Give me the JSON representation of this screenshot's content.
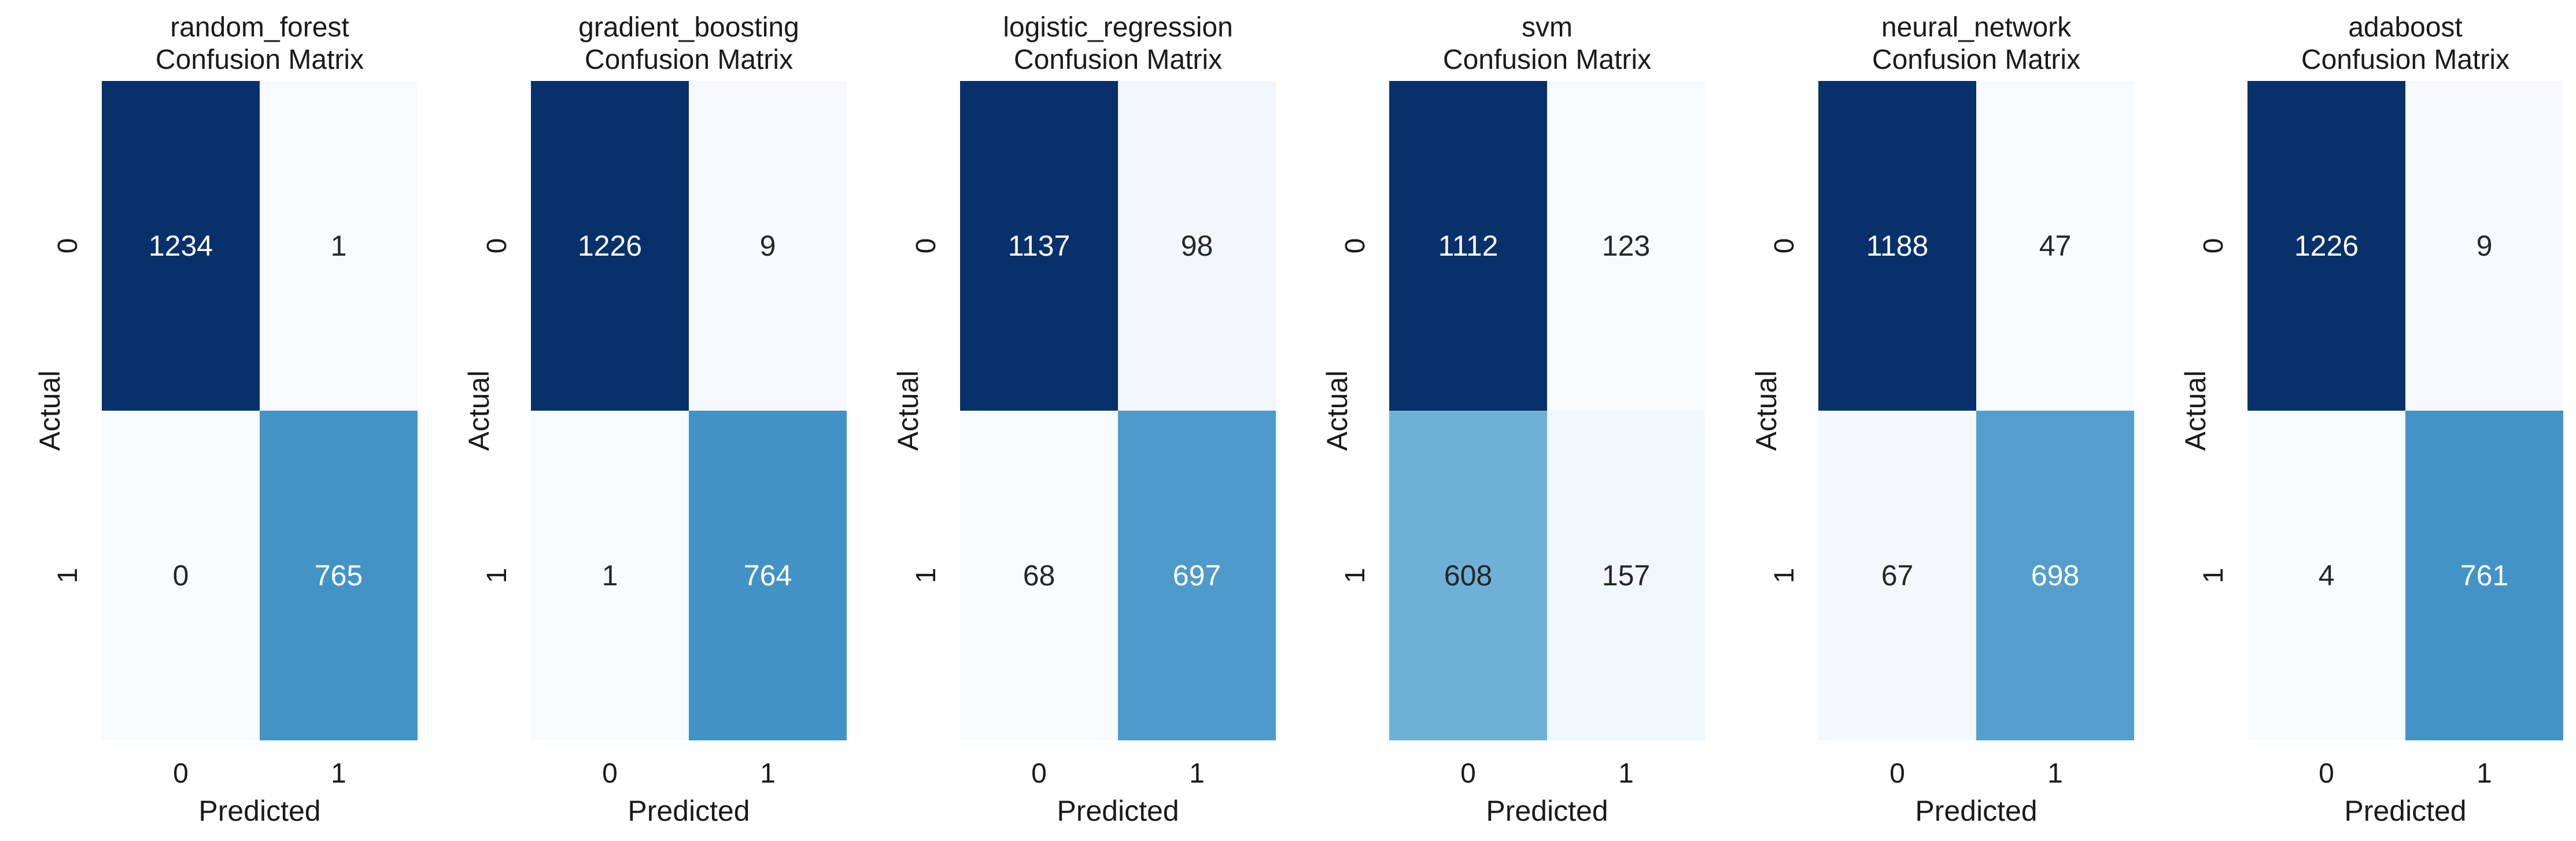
{
  "title_suffix": "Confusion Matrix",
  "colormap": {
    "name": "Blues",
    "low": "#f7fbff",
    "high": "#08306b",
    "text_dark": "#262626",
    "text_light": "#ffffff"
  },
  "chart_data": [
    {
      "type": "heatmap",
      "title": "random_forest",
      "subtitle": "Confusion Matrix",
      "xlabel": "Predicted",
      "ylabel": "Actual",
      "x_ticks": [
        "0",
        "1"
      ],
      "y_ticks": [
        "0",
        "1"
      ],
      "values": [
        [
          1234,
          1
        ],
        [
          0,
          765
        ]
      ]
    },
    {
      "type": "heatmap",
      "title": "gradient_boosting",
      "subtitle": "Confusion Matrix",
      "xlabel": "Predicted",
      "ylabel": "Actual",
      "x_ticks": [
        "0",
        "1"
      ],
      "y_ticks": [
        "0",
        "1"
      ],
      "values": [
        [
          1226,
          9
        ],
        [
          1,
          764
        ]
      ]
    },
    {
      "type": "heatmap",
      "title": "logistic_regression",
      "subtitle": "Confusion Matrix",
      "xlabel": "Predicted",
      "ylabel": "Actual",
      "x_ticks": [
        "0",
        "1"
      ],
      "y_ticks": [
        "0",
        "1"
      ],
      "values": [
        [
          1137,
          98
        ],
        [
          68,
          697
        ]
      ]
    },
    {
      "type": "heatmap",
      "title": "svm",
      "subtitle": "Confusion Matrix",
      "xlabel": "Predicted",
      "ylabel": "Actual",
      "x_ticks": [
        "0",
        "1"
      ],
      "y_ticks": [
        "0",
        "1"
      ],
      "values": [
        [
          1112,
          123
        ],
        [
          608,
          157
        ]
      ]
    },
    {
      "type": "heatmap",
      "title": "neural_network",
      "subtitle": "Confusion Matrix",
      "xlabel": "Predicted",
      "ylabel": "Actual",
      "x_ticks": [
        "0",
        "1"
      ],
      "y_ticks": [
        "0",
        "1"
      ],
      "values": [
        [
          1188,
          47
        ],
        [
          67,
          698
        ]
      ]
    },
    {
      "type": "heatmap",
      "title": "adaboost",
      "subtitle": "Confusion Matrix",
      "xlabel": "Predicted",
      "ylabel": "Actual",
      "x_ticks": [
        "0",
        "1"
      ],
      "y_ticks": [
        "0",
        "1"
      ],
      "values": [
        [
          1226,
          9
        ],
        [
          4,
          761
        ]
      ]
    }
  ]
}
